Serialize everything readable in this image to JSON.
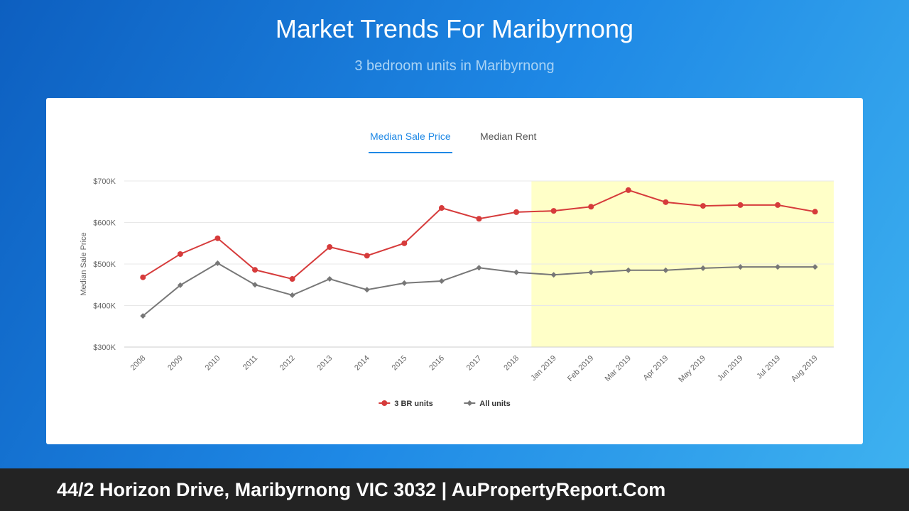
{
  "header": {
    "title": "Market Trends For Maribyrnong",
    "subtitle": "3 bedroom units in Maribyrnong"
  },
  "tabs": [
    "Median Sale Price",
    "Median Rent"
  ],
  "footer": "44/2 Horizon Drive, Maribyrnong VIC 3032 | AuPropertyReport.Com",
  "chart_data": {
    "type": "line",
    "y_label": "Median Sale Price",
    "categories": [
      "2008",
      "2009",
      "2010",
      "2011",
      "2012",
      "2013",
      "2014",
      "2015",
      "2016",
      "2017",
      "2018",
      "Jan 2019",
      "Feb 2019",
      "Mar 2019",
      "Apr 2019",
      "May 2019",
      "Jun 2019",
      "Jul 2019",
      "Aug 2019"
    ],
    "series": [
      {
        "name": "3 BR units",
        "color": "#d63b3b",
        "marker": "circle",
        "values": [
          468000,
          524000,
          562000,
          486000,
          464000,
          541000,
          520000,
          550000,
          635000,
          609000,
          625000,
          628000,
          638000,
          678000,
          649000,
          640000,
          642000,
          642000,
          626000
        ]
      },
      {
        "name": "All units",
        "color": "#777777",
        "marker": "diamond",
        "values": [
          375000,
          449000,
          502000,
          450000,
          425000,
          464000,
          438000,
          454000,
          459000,
          491000,
          480000,
          474000,
          480000,
          485000,
          485000,
          490000,
          493000,
          493000,
          493000
        ]
      }
    ],
    "ylim": [
      300000,
      700000
    ],
    "yticks": [
      {
        "value": 300000,
        "label": "$300K"
      },
      {
        "value": 400000,
        "label": "$400K"
      },
      {
        "value": 500000,
        "label": "$500K"
      },
      {
        "value": 600000,
        "label": "$600K"
      },
      {
        "value": 700000,
        "label": "$700K"
      }
    ],
    "grid": true,
    "legend": "bottom"
  }
}
